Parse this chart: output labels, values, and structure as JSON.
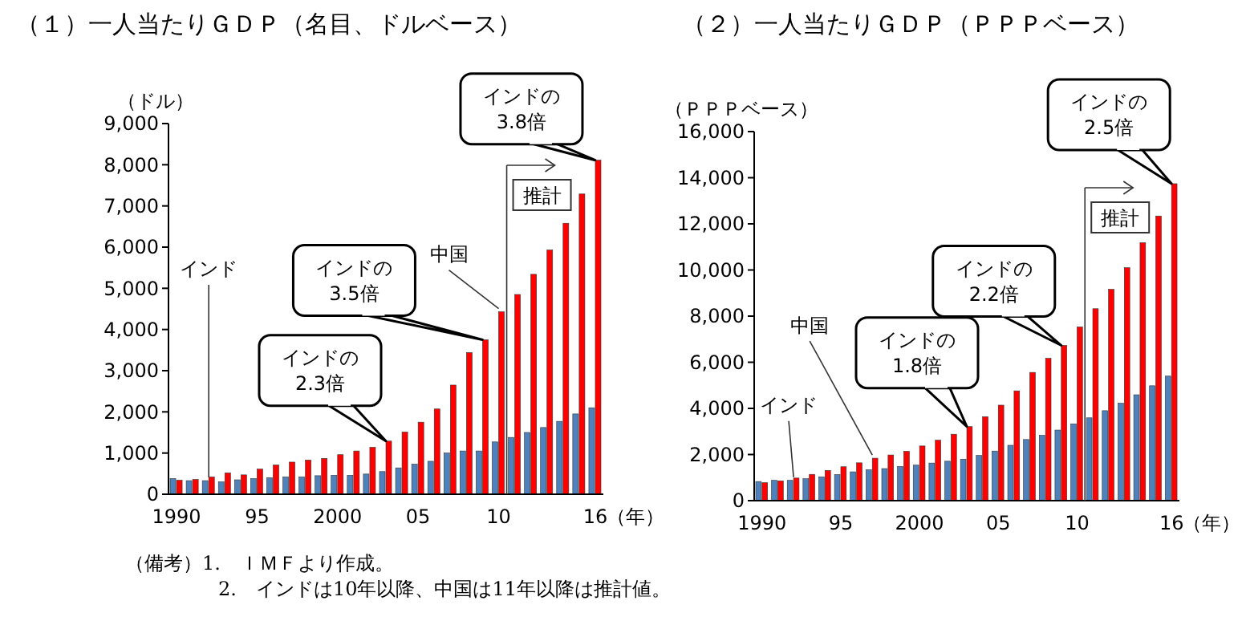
{
  "chart_data": [
    {
      "type": "bar",
      "title": "（１）一人当たりＧＤＰ（名目、ドルベース）",
      "ylabel": "（ドル）",
      "xlabel": "（年）",
      "x": [
        1990,
        1991,
        1992,
        1993,
        1994,
        1995,
        1996,
        1997,
        1998,
        1999,
        2000,
        2001,
        2002,
        2003,
        2004,
        2005,
        2006,
        2007,
        2008,
        2009,
        2010,
        2011,
        2012,
        2013,
        2014,
        2015,
        2016
      ],
      "xlim": [
        1989.5,
        2016.5
      ],
      "xticks": [
        {
          "value": 1990,
          "label": "1990"
        },
        {
          "value": 1995,
          "label": "95"
        },
        {
          "value": 2000,
          "label": "2000"
        },
        {
          "value": 2005,
          "label": "05"
        },
        {
          "value": 2010,
          "label": "10"
        },
        {
          "value": 2016,
          "label": "16"
        }
      ],
      "ylim": [
        0,
        9000
      ],
      "yticks": [
        0,
        {
          "value": 1000,
          "label": "1,000"
        },
        {
          "value": 2000,
          "label": "2,000"
        },
        {
          "value": 3000,
          "label": "3,000"
        },
        {
          "value": 4000,
          "label": "4,000"
        },
        {
          "value": 5000,
          "label": "5,000"
        },
        {
          "value": 6000,
          "label": "6,000"
        },
        {
          "value": 7000,
          "label": "7,000"
        },
        {
          "value": 8000,
          "label": "8,000"
        },
        {
          "value": 9000,
          "label": "9,000"
        }
      ],
      "series": [
        {
          "color": "#4f81bd",
          "values": [
            380,
            330,
            330,
            300,
            350,
            380,
            400,
            420,
            420,
            450,
            460,
            460,
            490,
            550,
            640,
            730,
            800,
            1000,
            1050,
            1050,
            1270,
            1380,
            1500,
            1620,
            1770,
            1950,
            2100
          ]
        },
        {
          "color": "#ff0000",
          "values": [
            340,
            360,
            420,
            520,
            470,
            610,
            710,
            780,
            830,
            870,
            960,
            1050,
            1140,
            1290,
            1510,
            1750,
            2070,
            2650,
            3440,
            3750,
            4430,
            4850,
            5340,
            5930,
            6580,
            7290,
            8110
          ]
        }
      ],
      "ref_lines": [
        {
          "axis": "x",
          "value": 2010.5,
          "label": "推計"
        }
      ],
      "annotations": [
        {
          "text": "インド",
          "x": 1992,
          "y": 330
        },
        {
          "text": "インドの\n2.3倍",
          "x": 2003,
          "y": 1290
        },
        {
          "text": "インドの\n3.5倍",
          "x": 2009,
          "y": 3750
        },
        {
          "text": "中国",
          "x": 2010,
          "y": 4430
        },
        {
          "text": "インドの\n3.8倍",
          "x": 2016,
          "y": 8110
        },
        "（備考）1.　ＩＭＦより作成。",
        "2.　インドは10年以降、中国は11年以降は推計値。"
      ]
    },
    {
      "type": "bar",
      "title": "（２）一人当たりＧＤＰ（ＰＰＰベース）",
      "ylabel": "（ＰＰＰベース）",
      "xlabel": "（年）",
      "x": [
        1990,
        1991,
        1992,
        1993,
        1994,
        1995,
        1996,
        1997,
        1998,
        1999,
        2000,
        2001,
        2002,
        2003,
        2004,
        2005,
        2006,
        2007,
        2008,
        2009,
        2010,
        2011,
        2012,
        2013,
        2014,
        2015,
        2016
      ],
      "xlim": [
        1989.5,
        2016.5
      ],
      "xticks": [
        {
          "value": 1990,
          "label": "1990"
        },
        {
          "value": 1995,
          "label": "95"
        },
        {
          "value": 2000,
          "label": "2000"
        },
        {
          "value": 2005,
          "label": "05"
        },
        {
          "value": 2010,
          "label": "10"
        },
        {
          "value": 2016,
          "label": "16"
        }
      ],
      "ylim": [
        0,
        16000
      ],
      "yticks": [
        0,
        {
          "value": 2000,
          "label": "2,000"
        },
        {
          "value": 4000,
          "label": "4,000"
        },
        {
          "value": 6000,
          "label": "6,000"
        },
        {
          "value": 8000,
          "label": "8,000"
        },
        {
          "value": 10000,
          "label": "10,000"
        },
        {
          "value": 12000,
          "label": "12,000"
        },
        {
          "value": 14000,
          "label": "14,000"
        },
        {
          "value": 16000,
          "label": "16,000"
        }
      ],
      "series": [
        {
          "color": "#4f81bd",
          "values": [
            830,
            880,
            880,
            950,
            1030,
            1130,
            1250,
            1340,
            1390,
            1480,
            1540,
            1630,
            1710,
            1800,
            1960,
            2150,
            2400,
            2650,
            2830,
            3060,
            3330,
            3590,
            3900,
            4220,
            4590,
            4980,
            5400
          ]
        },
        {
          "color": "#ff0000",
          "values": [
            780,
            860,
            980,
            1140,
            1310,
            1470,
            1640,
            1840,
            1980,
            2140,
            2370,
            2620,
            2880,
            3210,
            3640,
            4140,
            4760,
            5560,
            6170,
            6730,
            7530,
            8320,
            9160,
            10100,
            11180,
            12340,
            13740
          ]
        }
      ],
      "ref_lines": [
        {
          "axis": "x",
          "value": 2010.5,
          "label": "推計"
        }
      ],
      "annotations": [
        {
          "text": "インド",
          "x": 1992,
          "y": 880
        },
        {
          "text": "中国",
          "x": 1997,
          "y": 1840
        },
        {
          "text": "インドの\n1.8倍",
          "x": 2003,
          "y": 3210
        },
        {
          "text": "インドの\n2.2倍",
          "x": 2009,
          "y": 6730
        },
        {
          "text": "インドの\n2.5倍",
          "x": 2016,
          "y": 13740
        }
      ]
    }
  ]
}
